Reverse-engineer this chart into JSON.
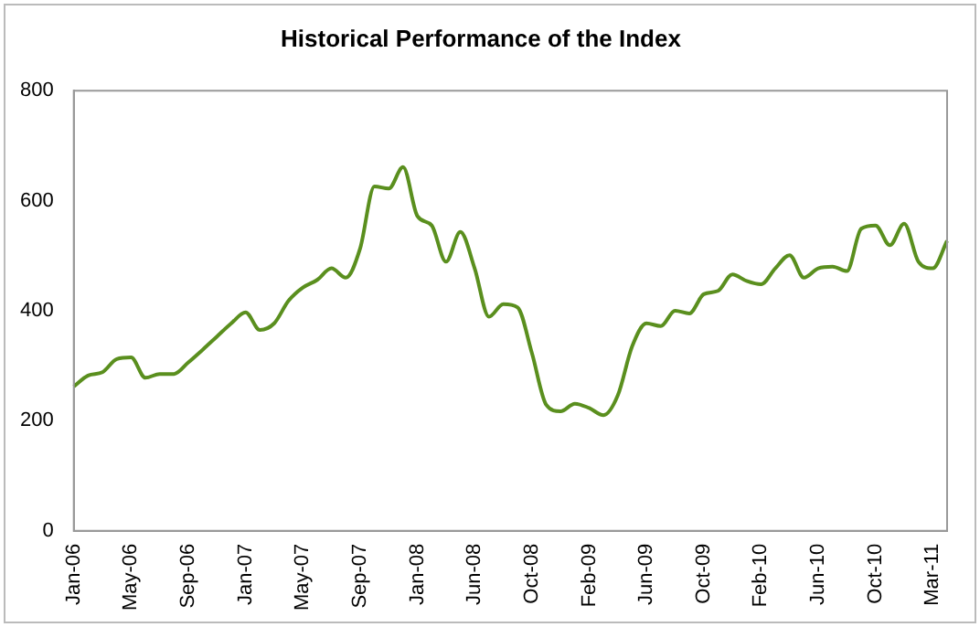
{
  "chart_data": {
    "type": "line",
    "title": "Historical Performance of the Index",
    "categories": [
      "Jan-06",
      null,
      null,
      null,
      "May-06",
      null,
      null,
      null,
      "Sep-06",
      null,
      null,
      null,
      "Jan-07",
      null,
      null,
      null,
      "May-07",
      null,
      null,
      null,
      "Sep-07",
      null,
      null,
      null,
      "Jan-08",
      null,
      null,
      null,
      "Jun-08",
      null,
      null,
      null,
      "Oct-08",
      null,
      null,
      null,
      "Feb-09",
      null,
      null,
      null,
      "Jun-09",
      null,
      null,
      null,
      "Oct-09",
      null,
      null,
      null,
      "Feb-10",
      null,
      null,
      null,
      "Jun-10",
      null,
      null,
      null,
      "Oct-10",
      null,
      null,
      null,
      "Mar-11",
      null
    ],
    "series": [
      {
        "color": "#5a8f1e",
        "values": [
          262,
          282,
          288,
          312,
          315,
          278,
          285,
          285,
          306,
          329,
          353,
          377,
          397,
          365,
          377,
          418,
          442,
          456,
          477,
          460,
          513,
          626,
          622,
          661,
          572,
          555,
          489,
          543,
          477,
          389,
          412,
          406,
          323,
          229,
          217,
          231,
          223,
          210,
          246,
          335,
          377,
          372,
          400,
          395,
          430,
          436,
          466,
          454,
          448,
          477,
          501,
          460,
          477,
          480,
          472,
          549,
          555,
          519,
          558,
          489,
          477,
          527
        ]
      }
    ],
    "ylim": [
      0,
      800
    ],
    "yticks": [
      0,
      200,
      400,
      600,
      800
    ],
    "grid": false,
    "legend": false,
    "marker": "none",
    "line_style": "solid"
  }
}
